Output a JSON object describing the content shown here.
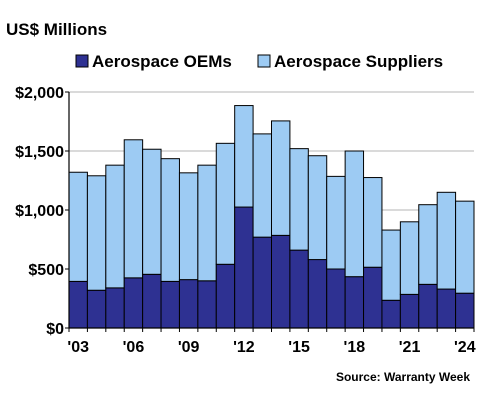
{
  "chart_data": {
    "type": "bar",
    "stacked": true,
    "title": "US$ Millions",
    "source": "Source: Warranty Week",
    "x": [
      2003,
      2004,
      2005,
      2006,
      2007,
      2008,
      2009,
      2010,
      2011,
      2012,
      2013,
      2014,
      2015,
      2016,
      2017,
      2018,
      2019,
      2020,
      2021,
      2022,
      2023,
      2024
    ],
    "x_tick_labels": [
      {
        "year": 2003,
        "label": "'03"
      },
      {
        "year": 2006,
        "label": "'06"
      },
      {
        "year": 2009,
        "label": "'09"
      },
      {
        "year": 2012,
        "label": "'12"
      },
      {
        "year": 2015,
        "label": "'15"
      },
      {
        "year": 2018,
        "label": "'18"
      },
      {
        "year": 2021,
        "label": "'21"
      },
      {
        "year": 2024,
        "label": "'24"
      }
    ],
    "y_ticks": [
      0,
      500,
      1000,
      1500,
      2000
    ],
    "y_tick_labels": [
      "$0",
      "$500",
      "$1,000",
      "$1,500",
      "$2,000"
    ],
    "ylim": [
      0,
      2000
    ],
    "grid": true,
    "legend_position": "top",
    "series": [
      {
        "name": "Aerospace OEMs",
        "color": "#2e3192",
        "values": [
          395,
          320,
          340,
          425,
          455,
          395,
          410,
          400,
          540,
          1025,
          770,
          785,
          660,
          580,
          500,
          435,
          515,
          235,
          285,
          370,
          330,
          295
        ]
      },
      {
        "name": "Aerospace Suppliers",
        "color": "#9dcbf3",
        "values": [
          925,
          970,
          1040,
          1170,
          1060,
          1040,
          905,
          980,
          1025,
          860,
          875,
          970,
          860,
          880,
          785,
          1065,
          760,
          595,
          615,
          675,
          820,
          780
        ]
      }
    ]
  }
}
